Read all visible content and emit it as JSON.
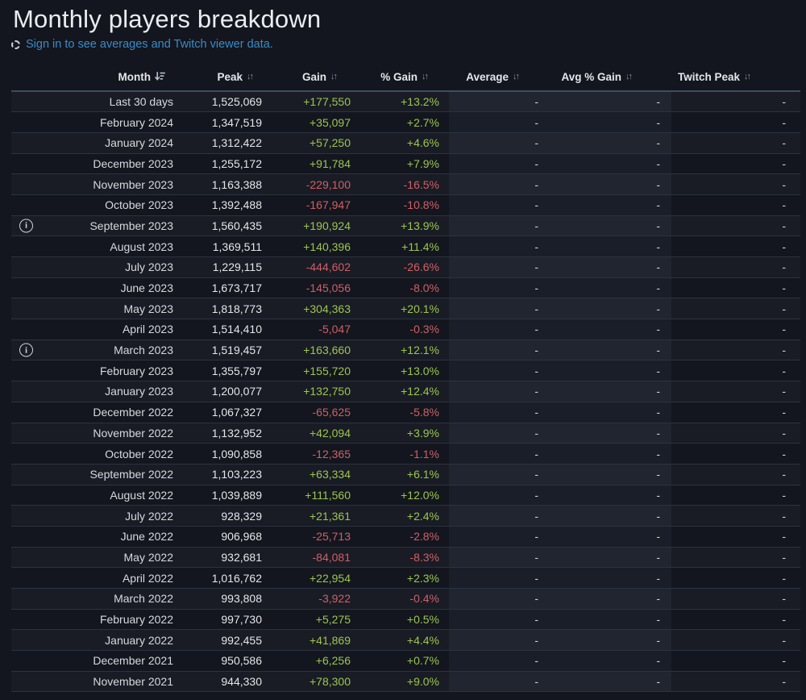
{
  "title": "Monthly players breakdown",
  "sign_in": {
    "text": "Sign in to see averages and Twitch viewer data."
  },
  "icons": {
    "sort_both": "↓↑",
    "info": "i"
  },
  "colors": {
    "background": "#13161e",
    "link_blue": "#3a8bc8",
    "positive_green": "#9dc550",
    "negative_red": "#d05f66"
  },
  "table": {
    "columns": [
      {
        "label": "Month",
        "sort": "desc-active"
      },
      {
        "label": "Peak",
        "sort": "both"
      },
      {
        "label": "Gain",
        "sort": "both"
      },
      {
        "label": "% Gain",
        "sort": "both"
      },
      {
        "label": "Average",
        "sort": "both"
      },
      {
        "label": "Avg % Gain",
        "sort": "both"
      },
      {
        "label": "Twitch Peak",
        "sort": "both"
      }
    ],
    "empty_value": "-",
    "rows": [
      {
        "month": "Last 30 days",
        "peak": "1,525,069",
        "gain": "+177,550",
        "gain_pct": "+13.2%",
        "average": "-",
        "avg_gain_pct": "-",
        "twitch_peak": "-",
        "info": false
      },
      {
        "month": "February 2024",
        "peak": "1,347,519",
        "gain": "+35,097",
        "gain_pct": "+2.7%",
        "average": "-",
        "avg_gain_pct": "-",
        "twitch_peak": "-",
        "info": false
      },
      {
        "month": "January 2024",
        "peak": "1,312,422",
        "gain": "+57,250",
        "gain_pct": "+4.6%",
        "average": "-",
        "avg_gain_pct": "-",
        "twitch_peak": "-",
        "info": false
      },
      {
        "month": "December 2023",
        "peak": "1,255,172",
        "gain": "+91,784",
        "gain_pct": "+7.9%",
        "average": "-",
        "avg_gain_pct": "-",
        "twitch_peak": "-",
        "info": false
      },
      {
        "month": "November 2023",
        "peak": "1,163,388",
        "gain": "-229,100",
        "gain_pct": "-16.5%",
        "average": "-",
        "avg_gain_pct": "-",
        "twitch_peak": "-",
        "info": false
      },
      {
        "month": "October 2023",
        "peak": "1,392,488",
        "gain": "-167,947",
        "gain_pct": "-10.8%",
        "average": "-",
        "avg_gain_pct": "-",
        "twitch_peak": "-",
        "info": false
      },
      {
        "month": "September 2023",
        "peak": "1,560,435",
        "gain": "+190,924",
        "gain_pct": "+13.9%",
        "average": "-",
        "avg_gain_pct": "-",
        "twitch_peak": "-",
        "info": true
      },
      {
        "month": "August 2023",
        "peak": "1,369,511",
        "gain": "+140,396",
        "gain_pct": "+11.4%",
        "average": "-",
        "avg_gain_pct": "-",
        "twitch_peak": "-",
        "info": false
      },
      {
        "month": "July 2023",
        "peak": "1,229,115",
        "gain": "-444,602",
        "gain_pct": "-26.6%",
        "average": "-",
        "avg_gain_pct": "-",
        "twitch_peak": "-",
        "info": false
      },
      {
        "month": "June 2023",
        "peak": "1,673,717",
        "gain": "-145,056",
        "gain_pct": "-8.0%",
        "average": "-",
        "avg_gain_pct": "-",
        "twitch_peak": "-",
        "info": false
      },
      {
        "month": "May 2023",
        "peak": "1,818,773",
        "gain": "+304,363",
        "gain_pct": "+20.1%",
        "average": "-",
        "avg_gain_pct": "-",
        "twitch_peak": "-",
        "info": false
      },
      {
        "month": "April 2023",
        "peak": "1,514,410",
        "gain": "-5,047",
        "gain_pct": "-0.3%",
        "average": "-",
        "avg_gain_pct": "-",
        "twitch_peak": "-",
        "info": false
      },
      {
        "month": "March 2023",
        "peak": "1,519,457",
        "gain": "+163,660",
        "gain_pct": "+12.1%",
        "average": "-",
        "avg_gain_pct": "-",
        "twitch_peak": "-",
        "info": true
      },
      {
        "month": "February 2023",
        "peak": "1,355,797",
        "gain": "+155,720",
        "gain_pct": "+13.0%",
        "average": "-",
        "avg_gain_pct": "-",
        "twitch_peak": "-",
        "info": false
      },
      {
        "month": "January 2023",
        "peak": "1,200,077",
        "gain": "+132,750",
        "gain_pct": "+12.4%",
        "average": "-",
        "avg_gain_pct": "-",
        "twitch_peak": "-",
        "info": false
      },
      {
        "month": "December 2022",
        "peak": "1,067,327",
        "gain": "-65,625",
        "gain_pct": "-5.8%",
        "average": "-",
        "avg_gain_pct": "-",
        "twitch_peak": "-",
        "info": false
      },
      {
        "month": "November 2022",
        "peak": "1,132,952",
        "gain": "+42,094",
        "gain_pct": "+3.9%",
        "average": "-",
        "avg_gain_pct": "-",
        "twitch_peak": "-",
        "info": false
      },
      {
        "month": "October 2022",
        "peak": "1,090,858",
        "gain": "-12,365",
        "gain_pct": "-1.1%",
        "average": "-",
        "avg_gain_pct": "-",
        "twitch_peak": "-",
        "info": false
      },
      {
        "month": "September 2022",
        "peak": "1,103,223",
        "gain": "+63,334",
        "gain_pct": "+6.1%",
        "average": "-",
        "avg_gain_pct": "-",
        "twitch_peak": "-",
        "info": false
      },
      {
        "month": "August 2022",
        "peak": "1,039,889",
        "gain": "+111,560",
        "gain_pct": "+12.0%",
        "average": "-",
        "avg_gain_pct": "-",
        "twitch_peak": "-",
        "info": false
      },
      {
        "month": "July 2022",
        "peak": "928,329",
        "gain": "+21,361",
        "gain_pct": "+2.4%",
        "average": "-",
        "avg_gain_pct": "-",
        "twitch_peak": "-",
        "info": false
      },
      {
        "month": "June 2022",
        "peak": "906,968",
        "gain": "-25,713",
        "gain_pct": "-2.8%",
        "average": "-",
        "avg_gain_pct": "-",
        "twitch_peak": "-",
        "info": false
      },
      {
        "month": "May 2022",
        "peak": "932,681",
        "gain": "-84,081",
        "gain_pct": "-8.3%",
        "average": "-",
        "avg_gain_pct": "-",
        "twitch_peak": "-",
        "info": false
      },
      {
        "month": "April 2022",
        "peak": "1,016,762",
        "gain": "+22,954",
        "gain_pct": "+2.3%",
        "average": "-",
        "avg_gain_pct": "-",
        "twitch_peak": "-",
        "info": false
      },
      {
        "month": "March 2022",
        "peak": "993,808",
        "gain": "-3,922",
        "gain_pct": "-0.4%",
        "average": "-",
        "avg_gain_pct": "-",
        "twitch_peak": "-",
        "info": false
      },
      {
        "month": "February 2022",
        "peak": "997,730",
        "gain": "+5,275",
        "gain_pct": "+0.5%",
        "average": "-",
        "avg_gain_pct": "-",
        "twitch_peak": "-",
        "info": false
      },
      {
        "month": "January 2022",
        "peak": "992,455",
        "gain": "+41,869",
        "gain_pct": "+4.4%",
        "average": "-",
        "avg_gain_pct": "-",
        "twitch_peak": "-",
        "info": false
      },
      {
        "month": "December 2021",
        "peak": "950,586",
        "gain": "+6,256",
        "gain_pct": "+0.7%",
        "average": "-",
        "avg_gain_pct": "-",
        "twitch_peak": "-",
        "info": false
      },
      {
        "month": "November 2021",
        "peak": "944,330",
        "gain": "+78,300",
        "gain_pct": "+9.0%",
        "average": "-",
        "avg_gain_pct": "-",
        "twitch_peak": "-",
        "info": false
      }
    ]
  }
}
